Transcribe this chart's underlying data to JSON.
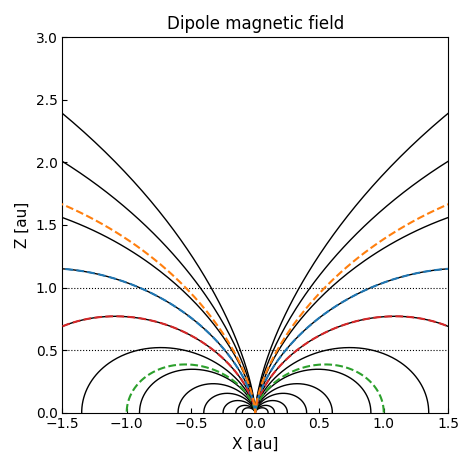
{
  "title": "Dipole magnetic field",
  "xlabel": "X [au]",
  "ylabel": "Z [au]",
  "xlim": [
    -1.5,
    1.5
  ],
  "ylim": [
    0.0,
    3.0
  ],
  "hlines_dotted": [
    0.5,
    1.0
  ],
  "field_line_r_eq": [
    0.1,
    0.15,
    0.25,
    0.4,
    0.6,
    0.9,
    1.35,
    2.0,
    3.0,
    4.5,
    7.0,
    10.0
  ],
  "dashed_arcs": [
    {
      "r_eq": 1.0,
      "color": "#2ca02c",
      "linestyle": "--"
    },
    {
      "r_eq": 2.0,
      "color": "#d62728",
      "linestyle": "--"
    },
    {
      "r_eq": 3.0,
      "color": "#1f77b4",
      "linestyle": "--"
    },
    {
      "r_eq": 5.0,
      "color": "#ff7f0e",
      "linestyle": "--"
    }
  ],
  "background_color": "#ffffff",
  "field_line_color": "#000000",
  "field_line_linewidth": 1.0,
  "dashed_linewidth": 1.5,
  "dotted_color": "#000000",
  "dotted_linewidth": 0.8,
  "title_fontsize": 12
}
